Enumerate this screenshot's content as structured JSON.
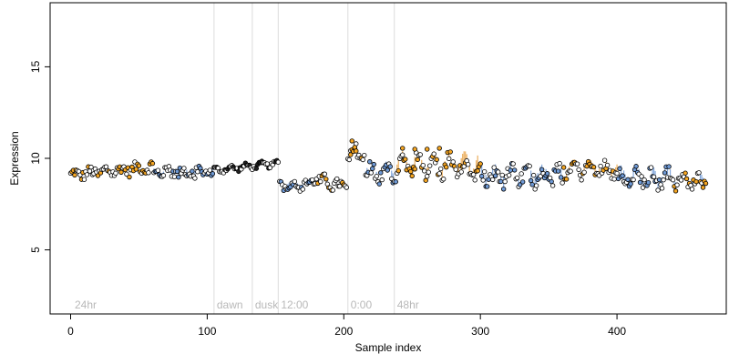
{
  "chart_data": {
    "type": "scatter",
    "title": "",
    "xlabel": "Sample index",
    "ylabel": "Expression",
    "xlim": [
      -15,
      480
    ],
    "ylim": [
      1.5,
      18.5
    ],
    "x_ticks": [
      {
        "value": 0,
        "label": "0"
      },
      {
        "value": 100,
        "label": "100"
      },
      {
        "value": 200,
        "label": "200"
      },
      {
        "value": 300,
        "label": "300"
      },
      {
        "value": 400,
        "label": "400"
      }
    ],
    "y_ticks": [
      {
        "value": 5,
        "label": "5"
      },
      {
        "value": 10,
        "label": "10"
      },
      {
        "value": 15,
        "label": "15"
      }
    ],
    "grid": false,
    "legend": "none",
    "colors": {
      "orange_fill": "#f5a623",
      "blue_fill": "#6f9ad6",
      "black_fill": "#222222",
      "marker_stroke": "#000000",
      "blue_drop": "#6f9ad6",
      "orange_drop": "#e8a040",
      "vline": "#dcdcdc",
      "annotation": "#b8b8b8"
    },
    "vlines": [
      {
        "x": 105,
        "label": ""
      },
      {
        "x": 133,
        "label": ""
      },
      {
        "x": 152,
        "label": ""
      },
      {
        "x": 203,
        "label": ""
      },
      {
        "x": 237,
        "label": ""
      }
    ],
    "annotations": [
      {
        "x": 3,
        "y": 2.0,
        "text": "24hr"
      },
      {
        "x": 107,
        "y": 2.0,
        "text": "dawn"
      },
      {
        "x": 135,
        "y": 2.0,
        "text": "dusk"
      },
      {
        "x": 154,
        "y": 2.0,
        "text": "12:00"
      },
      {
        "x": 205,
        "y": 2.0,
        "text": "0:00"
      },
      {
        "x": 239,
        "y": 2.0,
        "text": "48hr"
      }
    ],
    "segments": [
      {
        "x0": 0,
        "x1": 60,
        "y": 9.1,
        "slope": 0.007,
        "amp": 0.15,
        "noise": 0.28,
        "fill": "orange",
        "drop": "none"
      },
      {
        "x0": 61,
        "x1": 104,
        "y": 9.2,
        "slope": 0.0,
        "amp": 0.15,
        "noise": 0.28,
        "fill": "blue",
        "drop": "blue"
      },
      {
        "x0": 105,
        "x1": 152,
        "y": 9.35,
        "slope": 0.008,
        "amp": 0.1,
        "noise": 0.12,
        "fill": "black",
        "drop": "none"
      },
      {
        "x0": 153,
        "x1": 176,
        "y": 8.55,
        "slope": 0.0,
        "amp": 0.15,
        "noise": 0.22,
        "fill": "blue",
        "drop": "blue"
      },
      {
        "x0": 177,
        "x1": 202,
        "y": 8.9,
        "slope": -0.02,
        "amp": 0.15,
        "noise": 0.3,
        "fill": "orange",
        "drop": "none"
      },
      {
        "x0": 203,
        "x1": 215,
        "y": 10.2,
        "slope": 0.0,
        "amp": 0.3,
        "noise": 0.35,
        "fill": "orange",
        "drop": "none"
      },
      {
        "x0": 216,
        "x1": 238,
        "y": 9.2,
        "slope": 0.0,
        "amp": 0.35,
        "noise": 0.4,
        "fill": "blue",
        "drop": "blue"
      },
      {
        "x0": 239,
        "x1": 300,
        "y": 9.5,
        "slope": 0.0,
        "amp": 0.5,
        "noise": 0.45,
        "fill": "orange",
        "drop": "orange"
      },
      {
        "x0": 301,
        "x1": 360,
        "y": 9.05,
        "slope": 0.0,
        "amp": 0.35,
        "noise": 0.4,
        "fill": "blue",
        "drop": "blue"
      },
      {
        "x0": 361,
        "x1": 400,
        "y": 9.4,
        "slope": 0.0,
        "amp": 0.3,
        "noise": 0.3,
        "fill": "orange",
        "drop": "orange"
      },
      {
        "x0": 401,
        "x1": 440,
        "y": 8.9,
        "slope": 0.0,
        "amp": 0.4,
        "noise": 0.35,
        "fill": "blue",
        "drop": "blue"
      },
      {
        "x0": 441,
        "x1": 465,
        "y": 8.75,
        "slope": 0.0,
        "amp": 0.3,
        "noise": 0.3,
        "fill": "orange",
        "drop": "blue"
      }
    ],
    "highlight_points": [
      {
        "x": 206,
        "y": 10.95
      },
      {
        "x": 208,
        "y": 10.6
      },
      {
        "x": 209,
        "y": 10.4
      },
      {
        "x": 243,
        "y": 10.55
      },
      {
        "x": 252,
        "y": 10.5
      },
      {
        "x": 261,
        "y": 10.5
      },
      {
        "x": 270,
        "y": 10.55
      },
      {
        "x": 205,
        "y": 10.2
      }
    ]
  }
}
